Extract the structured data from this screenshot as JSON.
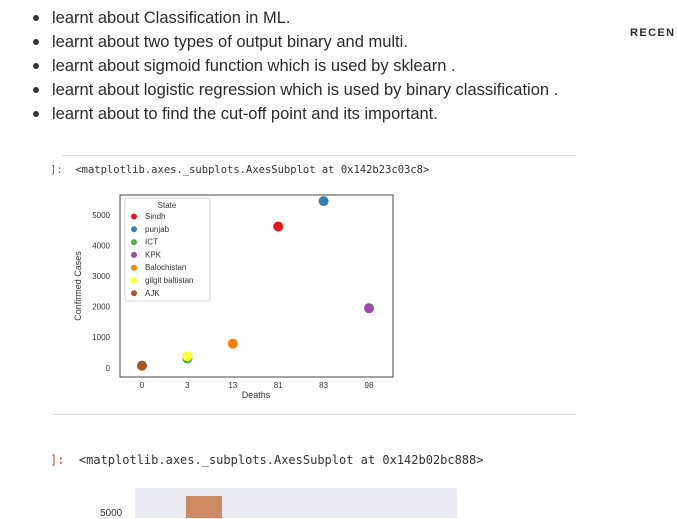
{
  "notes": {
    "bullets": [
      "learnt about Classification in ML.",
      "learnt about two types of output binary and multi.",
      "learnt about sigmoid function which is used by sklearn .",
      "learnt about logistic regression which is used by binary classification .",
      "learnt about to find the cut-off point and its important."
    ]
  },
  "sidebar": {
    "recent_label": "RECEN"
  },
  "cells": [
    {
      "prompt": "]:",
      "output": "<matplotlib.axes._subplots.AxesSubplot at 0x142b23c03c8>"
    },
    {
      "prompt": "]:",
      "output": "<matplotlib.axes._subplots.AxesSubplot at 0x142b02bc888>"
    }
  ],
  "chart_data": {
    "type": "scatter",
    "xlabel": "Deaths",
    "ylabel": "Confirmed Cases",
    "x_categories": [
      "0",
      "3",
      "13",
      "81",
      "83",
      "98"
    ],
    "y_ticks": [
      0,
      1000,
      2000,
      3000,
      4000,
      5000
    ],
    "ylim": [
      -300,
      5650
    ],
    "legend": {
      "title": "State",
      "placement": "upper-left"
    },
    "grid": false,
    "points": [
      {
        "state": "Sindh",
        "x": "81",
        "y": 4620,
        "color": "#e41a1c"
      },
      {
        "state": "punjab",
        "x": "83",
        "y": 5450,
        "color": "#377eb8"
      },
      {
        "state": "ICT",
        "x": "3",
        "y": 300,
        "color": "#4daf4a"
      },
      {
        "state": "KPK",
        "x": "98",
        "y": 1950,
        "color": "#984ea3"
      },
      {
        "state": "Balochistan",
        "x": "13",
        "y": 790,
        "color": "#ff7f00"
      },
      {
        "state": "gilgit baltistan",
        "x": "3",
        "y": 380,
        "color": "#ffff33"
      },
      {
        "state": "AJK",
        "x": "0",
        "y": 70,
        "color": "#a65628"
      }
    ]
  },
  "next_chart": {
    "y_tick": "5000"
  }
}
